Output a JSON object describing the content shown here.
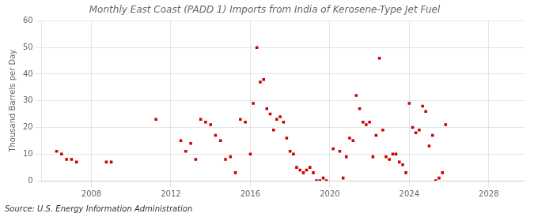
{
  "chart_data": {
    "type": "scatter",
    "title": "Monthly East Coast (PADD 1) Imports from India of Kerosene-Type Jet Fuel",
    "ylabel": "Thousand Barrels per Day",
    "annotations": [
      "Source: U.S. Energy Information Administration"
    ],
    "color": "#cc0000",
    "marker": "square",
    "grid": true,
    "xlim": [
      2005.5,
      2029.8
    ],
    "xticks": [
      2008,
      2012,
      2016,
      2020,
      2024,
      2028
    ],
    "ylim": [
      0,
      60
    ],
    "yticks": [
      0,
      10,
      20,
      30,
      40,
      50,
      60
    ],
    "x": [
      2006.25,
      2006.5,
      2006.75,
      2007.0,
      2007.25,
      2008.75,
      2009.0,
      2011.25,
      2012.5,
      2012.75,
      2013.0,
      2013.25,
      2013.5,
      2013.75,
      2014.0,
      2014.25,
      2014.5,
      2014.75,
      2015.0,
      2015.25,
      2015.5,
      2015.75,
      2016.0,
      2016.15,
      2016.33,
      2016.5,
      2016.67,
      2016.83,
      2017.0,
      2017.17,
      2017.33,
      2017.5,
      2017.67,
      2017.83,
      2018.0,
      2018.17,
      2018.33,
      2018.5,
      2018.67,
      2018.83,
      2019.0,
      2019.17,
      2019.33,
      2019.5,
      2019.67,
      2019.83,
      2020.17,
      2020.5,
      2020.67,
      2020.83,
      2021.0,
      2021.17,
      2021.33,
      2021.5,
      2021.67,
      2021.83,
      2022.0,
      2022.17,
      2022.33,
      2022.5,
      2022.67,
      2022.83,
      2023.0,
      2023.17,
      2023.33,
      2023.5,
      2023.67,
      2023.83,
      2024.0,
      2024.17,
      2024.33,
      2024.5,
      2024.67,
      2024.83,
      2025.0,
      2025.17,
      2025.33,
      2025.5,
      2025.67,
      2025.83
    ],
    "values": [
      11,
      10,
      8,
      8,
      7,
      7,
      7,
      23,
      15,
      11,
      14,
      8,
      23,
      22,
      21,
      17,
      15,
      8,
      9,
      3,
      23,
      22,
      10,
      29,
      50,
      37,
      38,
      27,
      25,
      19,
      23,
      24,
      22,
      16,
      11,
      10,
      5,
      4,
      3,
      4,
      5,
      3,
      0,
      0,
      1,
      0,
      12,
      11,
      1,
      9,
      16,
      15,
      32,
      27,
      22,
      21,
      22,
      9,
      17,
      46,
      19,
      9,
      8,
      10,
      10,
      7,
      6,
      3,
      29,
      20,
      18,
      19,
      28,
      26,
      13,
      17,
      0,
      1,
      3,
      21
    ]
  }
}
